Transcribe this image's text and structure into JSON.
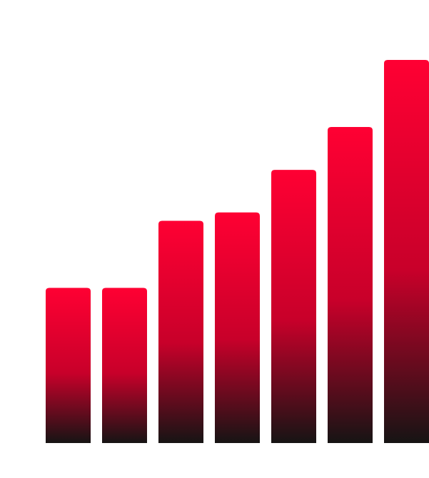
{
  "chart_data": {
    "type": "bar",
    "categories": [
      "",
      "",
      "",
      "",
      "",
      "",
      ""
    ],
    "values": [
      40.5,
      40.5,
      58,
      60.2,
      71.3,
      82.5,
      100
    ],
    "ylim": [
      0,
      100
    ],
    "grid": false,
    "legend": "none",
    "colors": {
      "bar_top": "#ff0033",
      "bar_mid": "#c8002a",
      "bar_bottom": "#161414",
      "background": "#ffffff"
    }
  }
}
